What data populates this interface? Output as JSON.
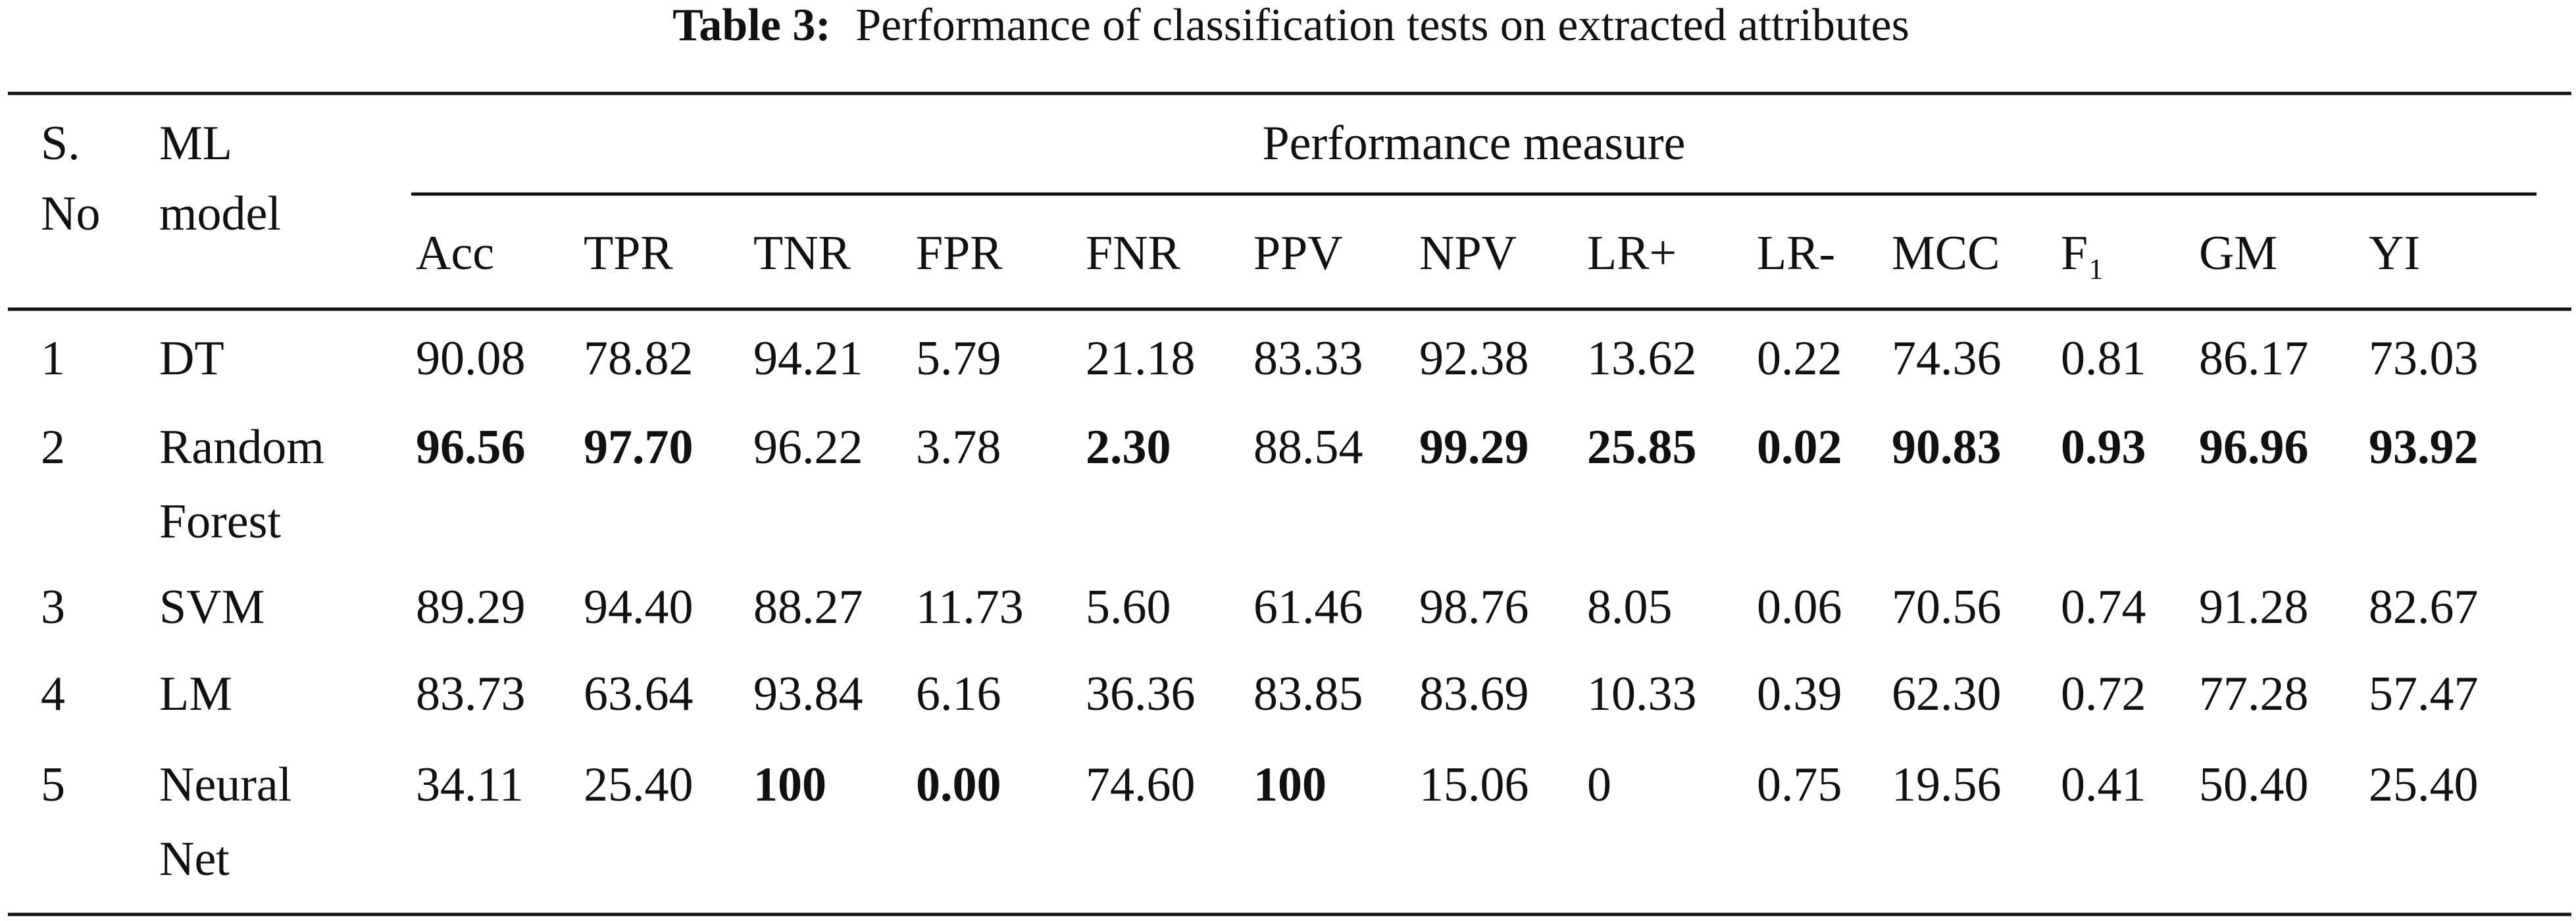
{
  "caption": {
    "label": "Table 3:",
    "text": "Performance of classification tests on extracted attributes"
  },
  "table": {
    "header": {
      "sno": [
        "S.",
        "No"
      ],
      "model": [
        "ML",
        "model"
      ],
      "group": "Performance measure",
      "measures": [
        "Acc",
        "TPR",
        "TNR",
        "FPR",
        "FNR",
        "PPV",
        "NPV",
        "LR+",
        "LR-",
        "MCC",
        "F₁",
        "GM",
        "YI"
      ]
    },
    "rows": [
      {
        "sno": "1",
        "model": [
          "DT"
        ],
        "values": [
          "90.08",
          "78.82",
          "94.21",
          "5.79",
          "21.18",
          "83.33",
          "92.38",
          "13.62",
          "0.22",
          "74.36",
          "0.81",
          "86.17",
          "73.03"
        ],
        "bold": [
          false,
          false,
          false,
          false,
          false,
          false,
          false,
          false,
          false,
          false,
          false,
          false,
          false
        ]
      },
      {
        "sno": "2",
        "model": [
          "Random",
          "Forest"
        ],
        "values": [
          "96.56",
          "97.70",
          "96.22",
          "3.78",
          "2.30",
          "88.54",
          "99.29",
          "25.85",
          "0.02",
          "90.83",
          "0.93",
          "96.96",
          "93.92"
        ],
        "bold": [
          true,
          true,
          false,
          false,
          true,
          false,
          true,
          true,
          true,
          true,
          true,
          true,
          true
        ]
      },
      {
        "sno": "3",
        "model": [
          "SVM"
        ],
        "values": [
          "89.29",
          "94.40",
          "88.27",
          "11.73",
          "5.60",
          "61.46",
          "98.76",
          "8.05",
          "0.06",
          "70.56",
          "0.74",
          "91.28",
          "82.67"
        ],
        "bold": [
          false,
          false,
          false,
          false,
          false,
          false,
          false,
          false,
          false,
          false,
          false,
          false,
          false
        ]
      },
      {
        "sno": "4",
        "model": [
          "LM"
        ],
        "values": [
          "83.73",
          "63.64",
          "93.84",
          "6.16",
          "36.36",
          "83.85",
          "83.69",
          "10.33",
          "0.39",
          "62.30",
          "0.72",
          "77.28",
          "57.47"
        ],
        "bold": [
          false,
          false,
          false,
          false,
          false,
          false,
          false,
          false,
          false,
          false,
          false,
          false,
          false
        ]
      },
      {
        "sno": "5",
        "model": [
          "Neural",
          "Net"
        ],
        "values": [
          "34.11",
          "25.40",
          "100",
          "0.00",
          "74.60",
          "100",
          "15.06",
          "0",
          "0.75",
          "19.56",
          "0.41",
          "50.40",
          "25.40"
        ],
        "bold": [
          false,
          false,
          true,
          true,
          false,
          true,
          false,
          false,
          false,
          false,
          false,
          false,
          false
        ]
      }
    ]
  }
}
